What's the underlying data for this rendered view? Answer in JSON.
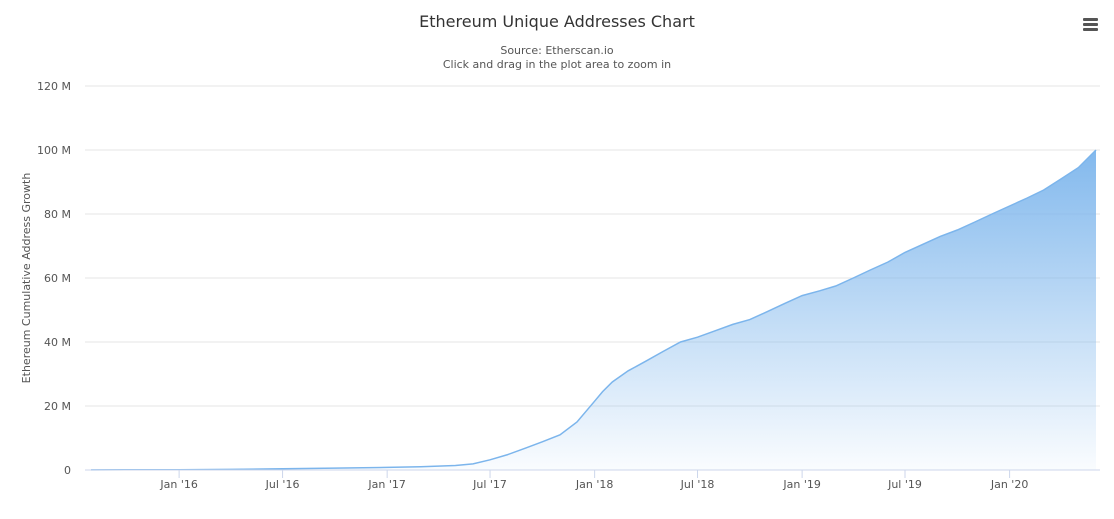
{
  "header": {
    "title": "Ethereum Unique Addresses Chart",
    "source": "Source: Etherscan.io",
    "hint": "Click and drag in the plot area to zoom in"
  },
  "menu": {
    "icon": "hamburger-menu-icon"
  },
  "colors": {
    "line": "#7cb5ec",
    "fill_top": "#7cb5ec",
    "fill_bottom": "#ffffff",
    "grid": "#e6e6e6",
    "axis_text": "#555555"
  },
  "chart_data": {
    "type": "area",
    "title": "Ethereum Unique Addresses Chart",
    "subtitle": "Source: Etherscan.io",
    "ylabel": "Ethereum Cumulative Address Growth",
    "xlabel": "",
    "ylim": [
      0,
      120
    ],
    "y_unit": "M",
    "y_ticks": [
      "0",
      "20 M",
      "40 M",
      "60 M",
      "80 M",
      "100 M",
      "120 M"
    ],
    "x_ticks": [
      "Jan '16",
      "Jul '16",
      "Jan '17",
      "Jul '17",
      "Jan '18",
      "Jul '18",
      "Jan '19",
      "Jul '19",
      "Jan '20"
    ],
    "grid": true,
    "legend": "none",
    "x": [
      "2015-07-30",
      "2015-10-01",
      "2016-01-01",
      "2016-04-01",
      "2016-07-01",
      "2016-10-01",
      "2017-01-01",
      "2017-03-01",
      "2017-05-01",
      "2017-06-01",
      "2017-07-01",
      "2017-08-01",
      "2017-09-01",
      "2017-10-01",
      "2017-11-01",
      "2017-12-01",
      "2018-01-01",
      "2018-01-15",
      "2018-02-01",
      "2018-03-01",
      "2018-04-01",
      "2018-05-01",
      "2018-06-01",
      "2018-07-01",
      "2018-08-01",
      "2018-09-01",
      "2018-10-01",
      "2018-11-01",
      "2018-12-01",
      "2019-01-01",
      "2019-02-01",
      "2019-03-01",
      "2019-04-01",
      "2019-05-01",
      "2019-06-01",
      "2019-07-01",
      "2019-08-01",
      "2019-09-01",
      "2019-10-01",
      "2019-11-01",
      "2019-12-01",
      "2020-01-01",
      "2020-02-01",
      "2020-03-01",
      "2020-04-01",
      "2020-05-01",
      "2020-06-01"
    ],
    "values": [
      0.02,
      0.05,
      0.1,
      0.2,
      0.4,
      0.6,
      0.8,
      1.0,
      1.4,
      1.9,
      3.2,
      4.8,
      6.8,
      8.8,
      11.0,
      15.0,
      21.5,
      24.5,
      27.5,
      31.0,
      34.0,
      37.0,
      40.0,
      41.5,
      43.5,
      45.5,
      47.0,
      49.5,
      52.0,
      54.5,
      56.0,
      57.5,
      60.0,
      62.5,
      65.0,
      68.0,
      70.5,
      73.0,
      75.0,
      77.5,
      80.0,
      82.5,
      85.0,
      87.5,
      91.0,
      94.5,
      100.0
    ]
  }
}
